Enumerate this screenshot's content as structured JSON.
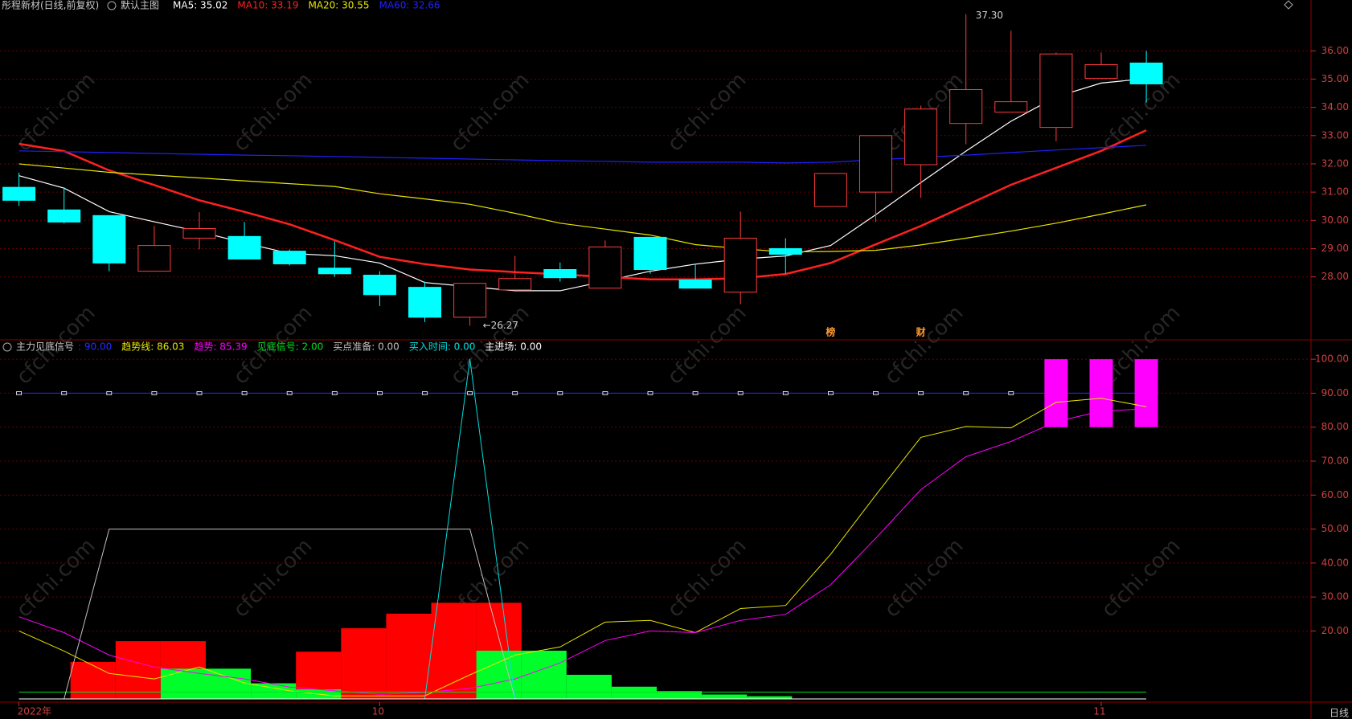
{
  "watermark": "cfchi.com",
  "chart_data": [
    {
      "type": "candlestick",
      "title": "彤程新材(日线,前复权)",
      "subtitle": "默认主图",
      "up_color": "#ff3b3b",
      "down_color": "#00ffff",
      "open": [
        31.17,
        30.37,
        30.17,
        28.2,
        29.37,
        29.43,
        28.91,
        28.31,
        28.06,
        27.63,
        26.57,
        27.54,
        28.26,
        27.6,
        29.4,
        27.89,
        27.46,
        29.0,
        30.49,
        31.0,
        31.97,
        33.43,
        33.83,
        33.29,
        35.03,
        35.57
      ],
      "close": [
        30.71,
        29.94,
        28.49,
        29.11,
        29.71,
        28.63,
        28.46,
        28.11,
        27.37,
        26.57,
        27.77,
        27.94,
        27.97,
        29.06,
        28.26,
        27.6,
        29.37,
        28.8,
        31.66,
        33.0,
        33.94,
        34.63,
        34.2,
        35.89,
        35.51,
        34.83
      ],
      "high": [
        31.69,
        31.17,
        30.17,
        29.8,
        30.29,
        29.94,
        28.97,
        29.26,
        28.2,
        27.83,
        27.77,
        28.74,
        28.51,
        29.29,
        29.4,
        28.46,
        30.31,
        29.37,
        31.66,
        33.0,
        34.06,
        37.3,
        36.71,
        35.94,
        35.94,
        36.0
      ],
      "low": [
        30.51,
        29.89,
        28.2,
        28.2,
        28.97,
        28.63,
        28.4,
        28.0,
        26.97,
        26.4,
        26.27,
        27.54,
        27.83,
        27.6,
        28.11,
        27.6,
        27.03,
        28.11,
        30.49,
        29.94,
        30.8,
        32.69,
        33.83,
        32.8,
        35.03,
        34.17
      ],
      "series": [
        {
          "name": "MA5: 35.02",
          "color": "#ffffff",
          "values": [
            31.58,
            31.14,
            30.31,
            29.95,
            29.6,
            29.2,
            28.83,
            28.75,
            28.49,
            27.8,
            27.65,
            27.51,
            27.51,
            27.85,
            28.2,
            28.45,
            28.63,
            28.74,
            29.11,
            30.2,
            31.34,
            32.45,
            33.51,
            34.37,
            34.86,
            35.02
          ]
        },
        {
          "name": "MA10: 33.19",
          "color": "#ff2020",
          "width": 2.5,
          "values": [
            32.71,
            32.45,
            31.77,
            31.25,
            30.71,
            30.3,
            29.86,
            29.3,
            28.71,
            28.45,
            28.26,
            28.17,
            28.09,
            28.0,
            27.91,
            27.91,
            27.95,
            28.1,
            28.49,
            29.15,
            29.8,
            30.53,
            31.26,
            31.86,
            32.46,
            33.19
          ]
        },
        {
          "name": "MA20: 30.55",
          "color": "#e6e600",
          "values": [
            32.0,
            31.85,
            31.7,
            31.6,
            31.5,
            31.4,
            31.3,
            31.2,
            30.94,
            30.76,
            30.57,
            30.25,
            29.9,
            29.69,
            29.48,
            29.14,
            29.0,
            28.88,
            28.9,
            28.94,
            29.13,
            29.37,
            29.62,
            29.9,
            30.22,
            30.55
          ]
        },
        {
          "name": "MA60: 32.66",
          "color": "#2020ff",
          "values": [
            32.46,
            32.43,
            32.4,
            32.37,
            32.34,
            32.31,
            32.29,
            32.26,
            32.23,
            32.2,
            32.17,
            32.14,
            32.11,
            32.09,
            32.06,
            32.06,
            32.06,
            32.03,
            32.06,
            32.14,
            32.23,
            32.31,
            32.4,
            32.49,
            32.57,
            32.66
          ]
        }
      ],
      "ylim": [
        25.8,
        37.8
      ],
      "yticks": [
        {
          "value": 28,
          "label": "28.00"
        },
        {
          "value": 29,
          "label": "29.00"
        },
        {
          "value": 30,
          "label": "30.00"
        },
        {
          "value": 31,
          "label": "31.00"
        },
        {
          "value": 32,
          "label": "32.00"
        },
        {
          "value": 33,
          "label": "33.00"
        },
        {
          "value": 34,
          "label": "34.00"
        },
        {
          "value": 35,
          "label": "35.00"
        },
        {
          "value": 36,
          "label": "36.00"
        }
      ],
      "grid": true,
      "annotations": [
        {
          "x": 21,
          "value": 37.3,
          "label": "37.30"
        },
        {
          "x": 10,
          "value": 26.27,
          "label": "←26.27"
        }
      ],
      "markers": [
        {
          "x": 18,
          "label": "榜"
        },
        {
          "x": 20,
          "label": "财"
        }
      ]
    },
    {
      "type": "indicator",
      "title": "主力见底信号",
      "categories": [
        "2022年",
        null,
        null,
        null,
        null,
        null,
        null,
        null,
        "10",
        null,
        null,
        null,
        null,
        null,
        null,
        null,
        null,
        null,
        null,
        null,
        null,
        null,
        null,
        null,
        "11",
        null
      ],
      "period": "日线",
      "series": [
        {
          "name": ": 90.00",
          "color": "#2030ff",
          "dots": true,
          "values": [
            90,
            90,
            90,
            90,
            90,
            90,
            90,
            90,
            90,
            90,
            90,
            90,
            90,
            90,
            90,
            90,
            90,
            90,
            90,
            90,
            90,
            90,
            90,
            90,
            90,
            90
          ]
        },
        {
          "type": "bar",
          "color": "#ff0000",
          "values": [
            null,
            10.9,
            17.0,
            17.0,
            null,
            null,
            13.9,
            20.8,
            25.1,
            28.3,
            28.3,
            null,
            null,
            null,
            null,
            null,
            null,
            null,
            null,
            null,
            null,
            null,
            null,
            null,
            null,
            null
          ]
        },
        {
          "type": "bar",
          "color": "#00ff2a",
          "values": [
            null,
            null,
            null,
            8.9,
            8.9,
            4.6,
            2.8,
            null,
            null,
            null,
            14.2,
            14.2,
            7.1,
            3.6,
            2.3,
            1.3,
            0.8,
            null,
            null,
            null,
            null,
            null,
            null,
            null,
            null,
            null
          ]
        },
        {
          "type": "floating_bar",
          "color": "#ff00ff",
          "low": [
            null,
            null,
            null,
            null,
            null,
            null,
            null,
            null,
            null,
            null,
            null,
            null,
            null,
            null,
            null,
            null,
            null,
            null,
            null,
            null,
            null,
            null,
            null,
            80,
            80,
            80
          ],
          "values": [
            null,
            null,
            null,
            null,
            null,
            null,
            null,
            null,
            null,
            null,
            null,
            null,
            null,
            null,
            null,
            null,
            null,
            null,
            null,
            null,
            null,
            null,
            null,
            100,
            100,
            100
          ]
        },
        {
          "name": "趋势线: 86.03",
          "color": "#e6e600",
          "values": [
            20.0,
            14.1,
            7.5,
            5.9,
            9.4,
            4.7,
            2.4,
            0.9,
            0.9,
            0.9,
            7.1,
            12.9,
            15.3,
            22.6,
            23.1,
            19.5,
            26.6,
            27.5,
            42.6,
            60.0,
            77.0,
            80.2,
            79.8,
            87.3,
            88.5,
            86.03
          ]
        },
        {
          "name": "趋势: 85.39",
          "color": "#ff00ff",
          "values": [
            24.2,
            19.5,
            12.9,
            9.4,
            7.5,
            5.9,
            3.5,
            2.4,
            1.4,
            1.9,
            3.1,
            5.9,
            10.6,
            17.2,
            20.0,
            19.5,
            23.1,
            24.9,
            33.6,
            47.3,
            61.6,
            71.3,
            75.8,
            81.6,
            84.7,
            85.39
          ]
        },
        {
          "name": "见底信号: 2.00",
          "color": "#00e020",
          "values": [
            2,
            2,
            2,
            2,
            2,
            2,
            2,
            2,
            2,
            2,
            2,
            2,
            2,
            2,
            2,
            2,
            2,
            2,
            2,
            2,
            2,
            2,
            2,
            2,
            2,
            2
          ]
        },
        {
          "name": "买点准备: 0.00",
          "color": "#c0c0c0",
          "values": [
            null,
            0,
            50,
            50,
            50,
            50,
            50,
            50,
            50,
            50,
            50,
            0,
            null,
            null,
            null,
            null,
            null,
            null,
            null,
            null,
            null,
            null,
            null,
            null,
            null,
            null
          ]
        },
        {
          "name": "买入时间: 0.00",
          "color": "#00e0e0",
          "values": [
            null,
            0,
            0,
            0,
            0,
            0,
            0,
            0,
            0,
            0,
            100,
            0,
            null,
            null,
            null,
            null,
            null,
            null,
            null,
            null,
            null,
            null,
            null,
            null,
            null,
            null
          ]
        },
        {
          "name": "主进场: 0.00",
          "color": "#ffffff",
          "values": [
            0,
            0,
            0,
            0,
            0,
            0,
            0,
            0,
            0,
            0,
            0,
            0,
            0,
            0,
            0,
            0,
            0,
            0,
            0,
            0,
            0,
            0,
            0,
            0,
            0,
            0
          ]
        }
      ],
      "ylim": [
        0,
        105
      ],
      "yticks": [
        {
          "value": 20,
          "label": "20.00"
        },
        {
          "value": 30,
          "label": "30.00"
        },
        {
          "value": 40,
          "label": "40.00"
        },
        {
          "value": 50,
          "label": "50.00"
        },
        {
          "value": 60,
          "label": "60.00"
        },
        {
          "value": 70,
          "label": "70.00"
        },
        {
          "value": 80,
          "label": "80.00"
        },
        {
          "value": 90,
          "label": "90.00"
        },
        {
          "value": 100,
          "label": "100.00"
        }
      ],
      "grid": true
    }
  ]
}
